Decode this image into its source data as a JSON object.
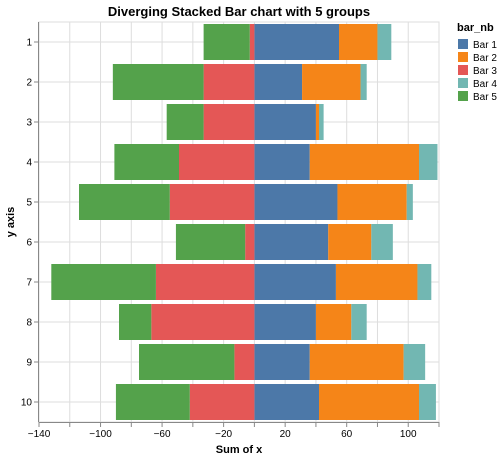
{
  "chart_data": {
    "type": "bar",
    "orientation": "horizontal",
    "stacked": "diverging",
    "title": "Diverging Stacked Bar chart with 5 groups",
    "xlabel": "Sum of x",
    "ylabel": "y axis",
    "xlim": [
      -140,
      120
    ],
    "x_ticks": [
      -140,
      -100,
      -60,
      -20,
      20,
      60,
      100
    ],
    "x_minor_ticks": [
      -120,
      -80,
      -40,
      0,
      40,
      80,
      120
    ],
    "grid": true,
    "categories": [
      "1",
      "2",
      "3",
      "4",
      "5",
      "6",
      "7",
      "8",
      "9",
      "10"
    ],
    "legend": {
      "title": "bar_nb",
      "position": "right",
      "entries": [
        "Bar 1",
        "Bar 2",
        "Bar 3",
        "Bar 4",
        "Bar 5"
      ]
    },
    "series": [
      {
        "name": "Bar 1",
        "color": "#4c78a8",
        "values": [
          55,
          31,
          40,
          36,
          54,
          48,
          53,
          40,
          36,
          42
        ]
      },
      {
        "name": "Bar 2",
        "color": "#f58518",
        "values": [
          25,
          38,
          2,
          71,
          45,
          28,
          53,
          23,
          61,
          65
        ]
      },
      {
        "name": "Bar 3",
        "color": "#e45756",
        "values": [
          -3,
          -33,
          -33,
          -49,
          -55,
          -6,
          -64,
          -67,
          -13,
          -42
        ]
      },
      {
        "name": "Bar 4",
        "color": "#72b7b2",
        "values": [
          9,
          4,
          3,
          12,
          4,
          14,
          9,
          10,
          14,
          11
        ]
      },
      {
        "name": "Bar 5",
        "color": "#54a24b",
        "values": [
          -30,
          -59,
          -24,
          -42,
          -59,
          -45,
          -68,
          -21,
          -62,
          -48
        ]
      }
    ]
  }
}
